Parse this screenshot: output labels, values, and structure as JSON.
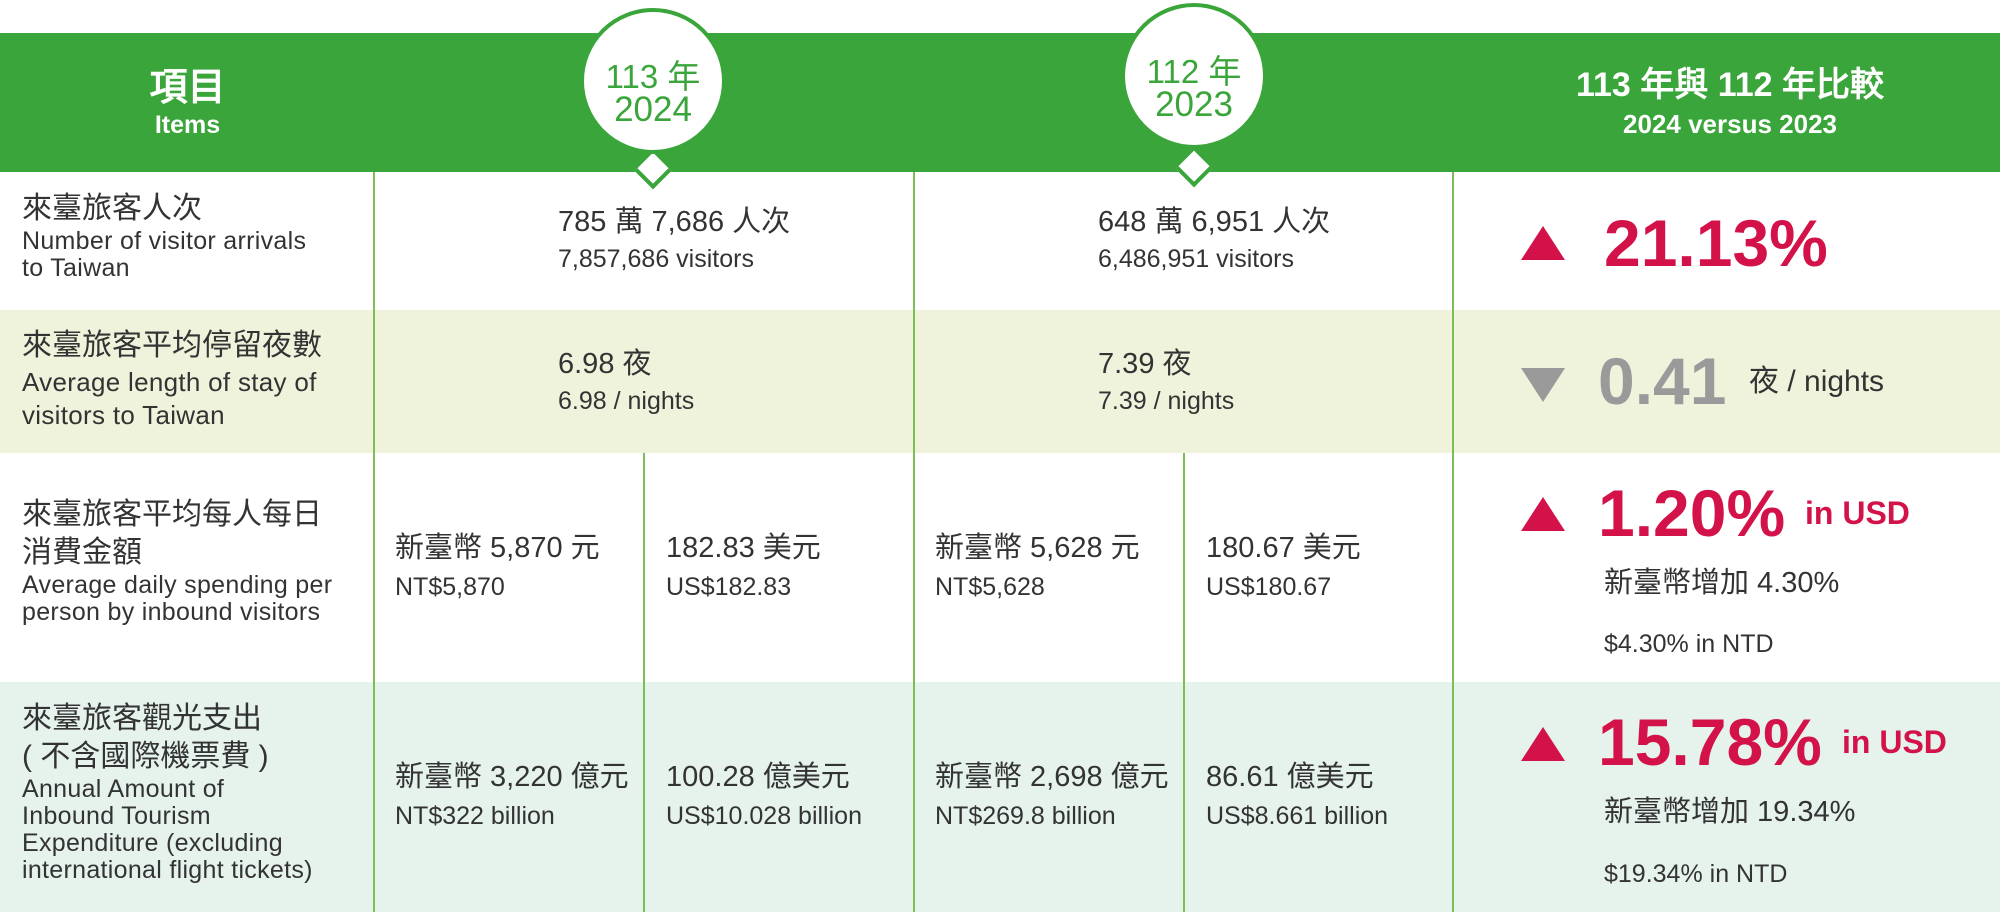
{
  "colors": {
    "green": "#3aa53a",
    "divider": "#7dbd55",
    "accent_red": "#d3124a",
    "neutral_grey": "#9a9a9a",
    "band_yellow": "#eff3dc",
    "band_mint": "#e5f3ec"
  },
  "header": {
    "items_zh": "項目",
    "items_en": "Items",
    "col2024_line1": "113 年",
    "col2024_line2": "2024",
    "col2023_line1": "112 年",
    "col2023_line2": "2023",
    "compare_zh": "113 年與 112 年比較",
    "compare_en": "2024 versus 2023"
  },
  "rows": [
    {
      "label_zh": "來臺旅客人次",
      "label_en_1": "Number of visitor arrivals",
      "label_en_2": "to Taiwan",
      "v2024_zh": "785 萬 7,686 人次",
      "v2024_en": "7,857,686 visitors",
      "v2023_zh": "648 萬 6,951 人次",
      "v2023_en": "6,486,951 visitors",
      "trend_icon": "arrow-up-icon",
      "change": "21.13%"
    },
    {
      "label_zh": "來臺旅客平均停留夜數",
      "label_en_1": "Average length of stay of",
      "label_en_2": "visitors to Taiwan",
      "v2024_zh": "6.98 夜",
      "v2024_en": "6.98 / nights",
      "v2023_zh": "7.39 夜",
      "v2023_en": "7.39 / nights",
      "trend_icon": "arrow-down-icon",
      "change": "0.41",
      "change_unit": "夜 / nights"
    },
    {
      "label_zh_1": "來臺旅客平均每人每日",
      "label_zh_2": "消費金額",
      "label_en_1": "Average daily spending per",
      "label_en_2": "person by inbound visitors",
      "v2024_ntd_zh": "新臺幣 5,870 元",
      "v2024_ntd_en": "NT$5,870",
      "v2024_usd_zh": "182.83 美元",
      "v2024_usd_en": "US$182.83",
      "v2023_ntd_zh": "新臺幣 5,628 元",
      "v2023_ntd_en": "NT$5,628",
      "v2023_usd_zh": "180.67 美元",
      "v2023_usd_en": "US$180.67",
      "trend_icon": "arrow-up-icon",
      "change": "1.20%",
      "change_unit": "in USD",
      "ntd_zh": "新臺幣增加 4.30%",
      "ntd_en": "$4.30% in NTD"
    },
    {
      "label_zh_1": "來臺旅客觀光支出",
      "label_zh_2": "( 不含國際機票費 )",
      "label_en_1": "Annual Amount of",
      "label_en_2": "Inbound Tourism",
      "label_en_3": "Expenditure (excluding",
      "label_en_4": "international flight tickets)",
      "v2024_ntd_zh": "新臺幣 3,220 億元",
      "v2024_ntd_en": "NT$322 billion",
      "v2024_usd_zh": "100.28 億美元",
      "v2024_usd_en": "US$10.028 billion",
      "v2023_ntd_zh": "新臺幣 2,698 億元",
      "v2023_ntd_en": "NT$269.8 billion",
      "v2023_usd_zh": "86.61 億美元",
      "v2023_usd_en": "US$8.661 billion",
      "trend_icon": "arrow-up-icon",
      "change": "15.78%",
      "change_unit": "in USD",
      "ntd_zh": "新臺幣增加 19.34%",
      "ntd_en": "$19.34% in NTD"
    }
  ]
}
